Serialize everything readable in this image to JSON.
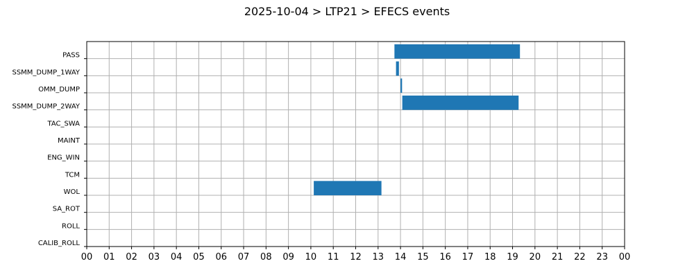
{
  "chart_data": {
    "type": "gantt",
    "title": "2025-10-04 > LTP21 > EFECS events",
    "xlabel": "",
    "ylabel": "",
    "xlim": [
      0,
      24
    ],
    "x_ticks": [
      "00",
      "01",
      "02",
      "03",
      "04",
      "05",
      "06",
      "07",
      "08",
      "09",
      "10",
      "11",
      "12",
      "13",
      "14",
      "15",
      "16",
      "17",
      "18",
      "19",
      "20",
      "21",
      "22",
      "23",
      "00"
    ],
    "categories": [
      "PASS",
      "SSMM_DUMP_1WAY",
      "OMM_DUMP",
      "SSMM_DUMP_2WAY",
      "TAC_SWA",
      "MAINT",
      "ENG_WIN",
      "TCM",
      "WOL",
      "SA_ROT",
      "ROLL",
      "CALIB_ROLL"
    ],
    "events": [
      {
        "category": "PASS",
        "start": 13.73,
        "end": 19.33
      },
      {
        "category": "SSMM_DUMP_1WAY",
        "start": 13.8,
        "end": 13.93
      },
      {
        "category": "OMM_DUMP",
        "start": 14.0,
        "end": 14.07
      },
      {
        "category": "SSMM_DUMP_2WAY",
        "start": 14.08,
        "end": 19.27
      },
      {
        "category": "WOL",
        "start": 10.13,
        "end": 13.15
      }
    ],
    "bar_color": "#1f77b4",
    "grid": true
  }
}
